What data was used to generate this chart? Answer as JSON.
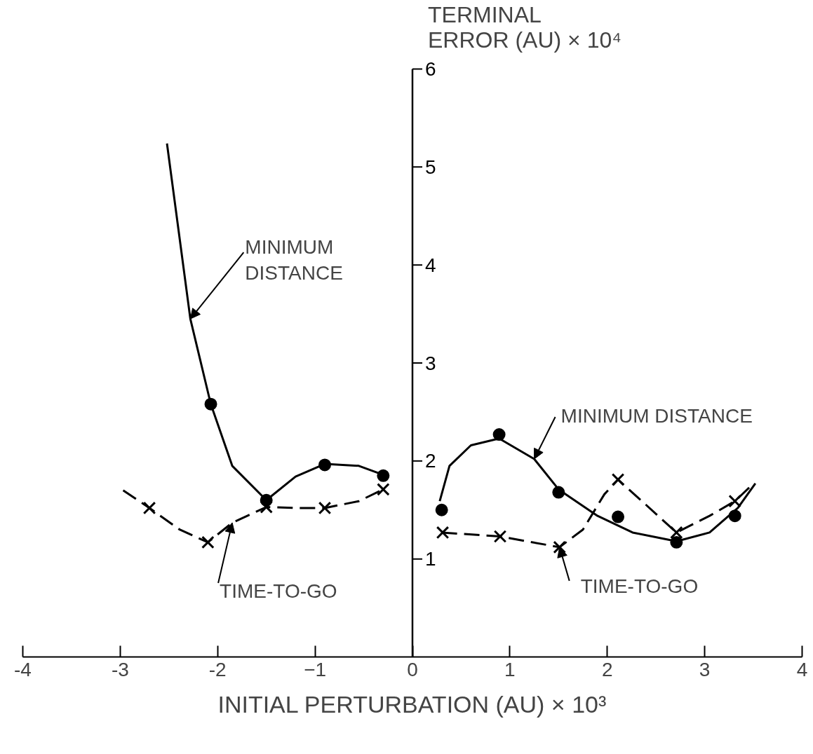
{
  "chart_data": {
    "type": "line",
    "ylabel": "TERMINAL\nERROR (AU) × 10⁴",
    "xlabel": "INITIAL PERTURBATION (AU) × 10³",
    "xlim": [
      -4,
      4
    ],
    "ylim": [
      0,
      6
    ],
    "xticks": [
      -4,
      -3,
      -2,
      {
        "value": -1,
        "label": "−1"
      },
      0,
      1,
      2,
      3,
      4
    ],
    "yticks": [
      1,
      2,
      3,
      4,
      5,
      6
    ],
    "grid": false,
    "series": [
      {
        "color": "#000000",
        "line_style": "solid",
        "marker": "none",
        "x": [
          -2.52,
          -2.28,
          -2.07,
          -1.85,
          -1.5,
          -1.2,
          -0.9,
          -0.55,
          -0.25
        ],
        "values": [
          5.24,
          3.45,
          2.58,
          1.95,
          1.6,
          1.84,
          1.97,
          1.95,
          1.84
        ]
      },
      {
        "color": "#000000",
        "line_style": "solid",
        "marker": "none",
        "x": [
          0.28,
          0.38,
          0.6,
          0.89,
          1.25,
          1.5,
          1.9,
          2.26,
          2.71,
          3.05,
          3.34,
          3.52
        ],
        "values": [
          1.59,
          1.95,
          2.16,
          2.23,
          2.02,
          1.71,
          1.44,
          1.27,
          1.18,
          1.27,
          1.52,
          1.77
        ]
      },
      {
        "color": "#000000",
        "line_style": "dashed",
        "marker": "none",
        "x": [
          -2.97,
          -2.7,
          -2.39,
          -2.1,
          -1.85,
          -1.5,
          -1.2,
          -0.9,
          -0.55,
          -0.3
        ],
        "values": [
          1.7,
          1.52,
          1.3,
          1.17,
          1.37,
          1.53,
          1.52,
          1.52,
          1.59,
          1.71
        ]
      },
      {
        "color": "#000000",
        "line_style": "dashed",
        "marker": "none",
        "x": [
          0.3,
          0.9,
          1.51,
          1.75,
          1.97,
          2.11,
          2.4,
          2.71,
          3.05,
          3.31,
          3.48
        ],
        "values": [
          1.27,
          1.23,
          1.12,
          1.3,
          1.66,
          1.81,
          1.55,
          1.27,
          1.44,
          1.59,
          1.75
        ]
      },
      {
        "type": "scatter",
        "color": "#000000",
        "marker": "circle",
        "x": [
          -2.07,
          -1.5,
          -0.9,
          -0.3,
          0.3,
          0.89,
          1.5,
          2.11,
          2.71,
          3.31
        ],
        "values": [
          2.58,
          1.6,
          1.96,
          1.85,
          1.5,
          2.27,
          1.68,
          1.43,
          1.17,
          1.44
        ]
      },
      {
        "type": "scatter",
        "color": "#000000",
        "marker": "cross",
        "x": [
          -2.7,
          -2.1,
          -1.5,
          -0.9,
          -0.3,
          0.31,
          0.9,
          1.51,
          2.11,
          2.71,
          3.31
        ],
        "values": [
          1.52,
          1.17,
          1.53,
          1.52,
          1.71,
          1.27,
          1.23,
          1.12,
          1.81,
          1.27,
          1.59
        ]
      }
    ],
    "annotations": [
      {
        "text": "MINIMUM\nDISTANCE",
        "x": -2.28,
        "y": 3.45
      },
      {
        "text": "TIME-TO-GO",
        "x": -1.85,
        "y": 1.37
      },
      {
        "text": "MINIMUM DISTANCE",
        "x": 1.25,
        "y": 2.02
      },
      {
        "text": "TIME-TO-GO",
        "x": 1.51,
        "y": 1.12
      }
    ]
  }
}
